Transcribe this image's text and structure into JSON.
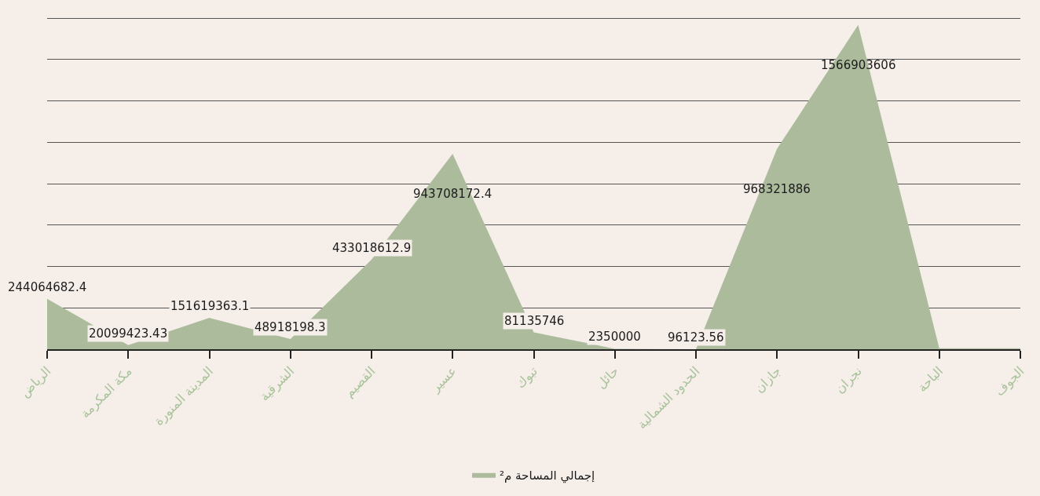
{
  "chart_data": {
    "type": "area",
    "categories": [
      "الرياض",
      "مكة المكرمة",
      "المدينة المنورة",
      "الشرقية",
      "القصيم",
      "عسير",
      "تبوك",
      "حائل",
      "الحدود الشمالية",
      "جازان",
      "نجران",
      "الباحة",
      "الجوف"
    ],
    "series": [
      {
        "name": "إجمالي المساحة م²",
        "color": "#abbb9c",
        "values": [
          244064682.4,
          20099423.43,
          151619363.1,
          48918198.3,
          433018612.9,
          943708172.4,
          81135746,
          2350000,
          96123.56,
          968321886,
          1566903606,
          5000000,
          5000000
        ],
        "value_labels": [
          "244064682.4",
          "20099423.43",
          "151619363.1",
          "48918198.3",
          "433018612.9",
          "943708172.4",
          "81135746",
          "2350000",
          "96123.56",
          "968321886",
          "1566903606",
          null,
          null
        ]
      }
    ],
    "yticks": [
      {
        "value": 0,
        "label": null
      },
      {
        "value": 200000000,
        "label": null
      },
      {
        "value": 400000000,
        "label": null
      },
      {
        "value": 600000000,
        "label": null
      },
      {
        "value": 800000000,
        "label": null
      },
      {
        "value": 1000000000,
        "label": null
      },
      {
        "value": 1200000000,
        "label": null
      },
      {
        "value": 1400000000,
        "label": null
      },
      {
        "value": 1600000000,
        "label": null
      }
    ],
    "grid": "y",
    "legend": "bottom",
    "tick_labels": "x"
  }
}
